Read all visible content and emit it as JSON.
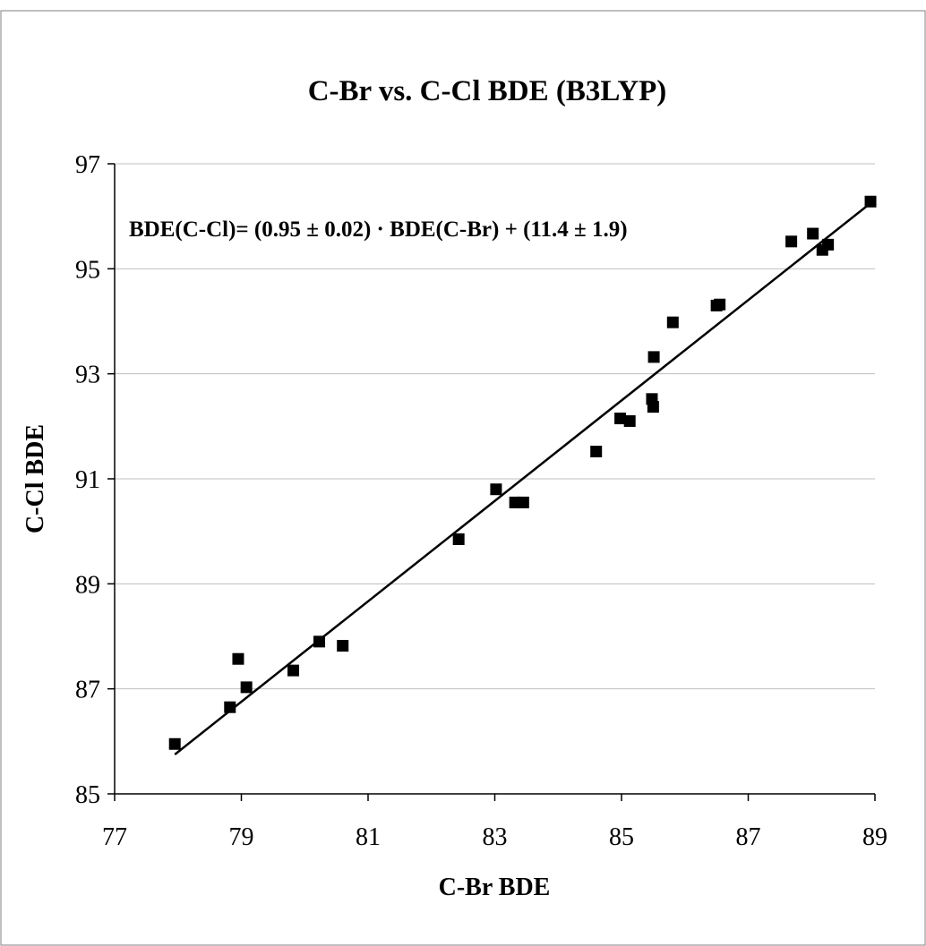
{
  "chart_data": {
    "type": "scatter",
    "title": "C-Br vs. C-Cl BDE (B3LYP)",
    "xlabel": "C-Br BDE",
    "ylabel": "C-Cl BDE",
    "xlim": [
      77,
      89
    ],
    "ylim": [
      85,
      97
    ],
    "xticks": [
      "77",
      "79",
      "81",
      "83",
      "85",
      "87",
      "89"
    ],
    "yticks": [
      "85",
      "87",
      "89",
      "91",
      "93",
      "95",
      "97"
    ],
    "grid": "horizontal",
    "annotation": "BDE(C-Cl)= (0.95 ± 0.02) · BDE(C-Br) + (11.4 ± 1.9)",
    "points": [
      {
        "x": 77.95,
        "y": 85.95
      },
      {
        "x": 78.82,
        "y": 86.65
      },
      {
        "x": 79.08,
        "y": 87.03
      },
      {
        "x": 78.95,
        "y": 87.57
      },
      {
        "x": 79.82,
        "y": 87.35
      },
      {
        "x": 80.23,
        "y": 87.9
      },
      {
        "x": 80.6,
        "y": 87.82
      },
      {
        "x": 82.43,
        "y": 89.85
      },
      {
        "x": 83.02,
        "y": 90.8
      },
      {
        "x": 83.32,
        "y": 90.55
      },
      {
        "x": 83.45,
        "y": 90.55
      },
      {
        "x": 84.6,
        "y": 91.52
      },
      {
        "x": 84.98,
        "y": 92.15
      },
      {
        "x": 85.13,
        "y": 92.1
      },
      {
        "x": 85.48,
        "y": 92.52
      },
      {
        "x": 85.5,
        "y": 92.37
      },
      {
        "x": 85.51,
        "y": 93.32
      },
      {
        "x": 85.81,
        "y": 93.98
      },
      {
        "x": 86.5,
        "y": 94.3
      },
      {
        "x": 86.55,
        "y": 94.32
      },
      {
        "x": 87.68,
        "y": 95.52
      },
      {
        "x": 88.02,
        "y": 95.67
      },
      {
        "x": 88.17,
        "y": 95.36
      },
      {
        "x": 88.26,
        "y": 95.46
      },
      {
        "x": 88.93,
        "y": 96.28
      }
    ],
    "trendline": {
      "x": [
        77.95,
        88.93
      ],
      "y": [
        85.75,
        96.25
      ]
    }
  }
}
